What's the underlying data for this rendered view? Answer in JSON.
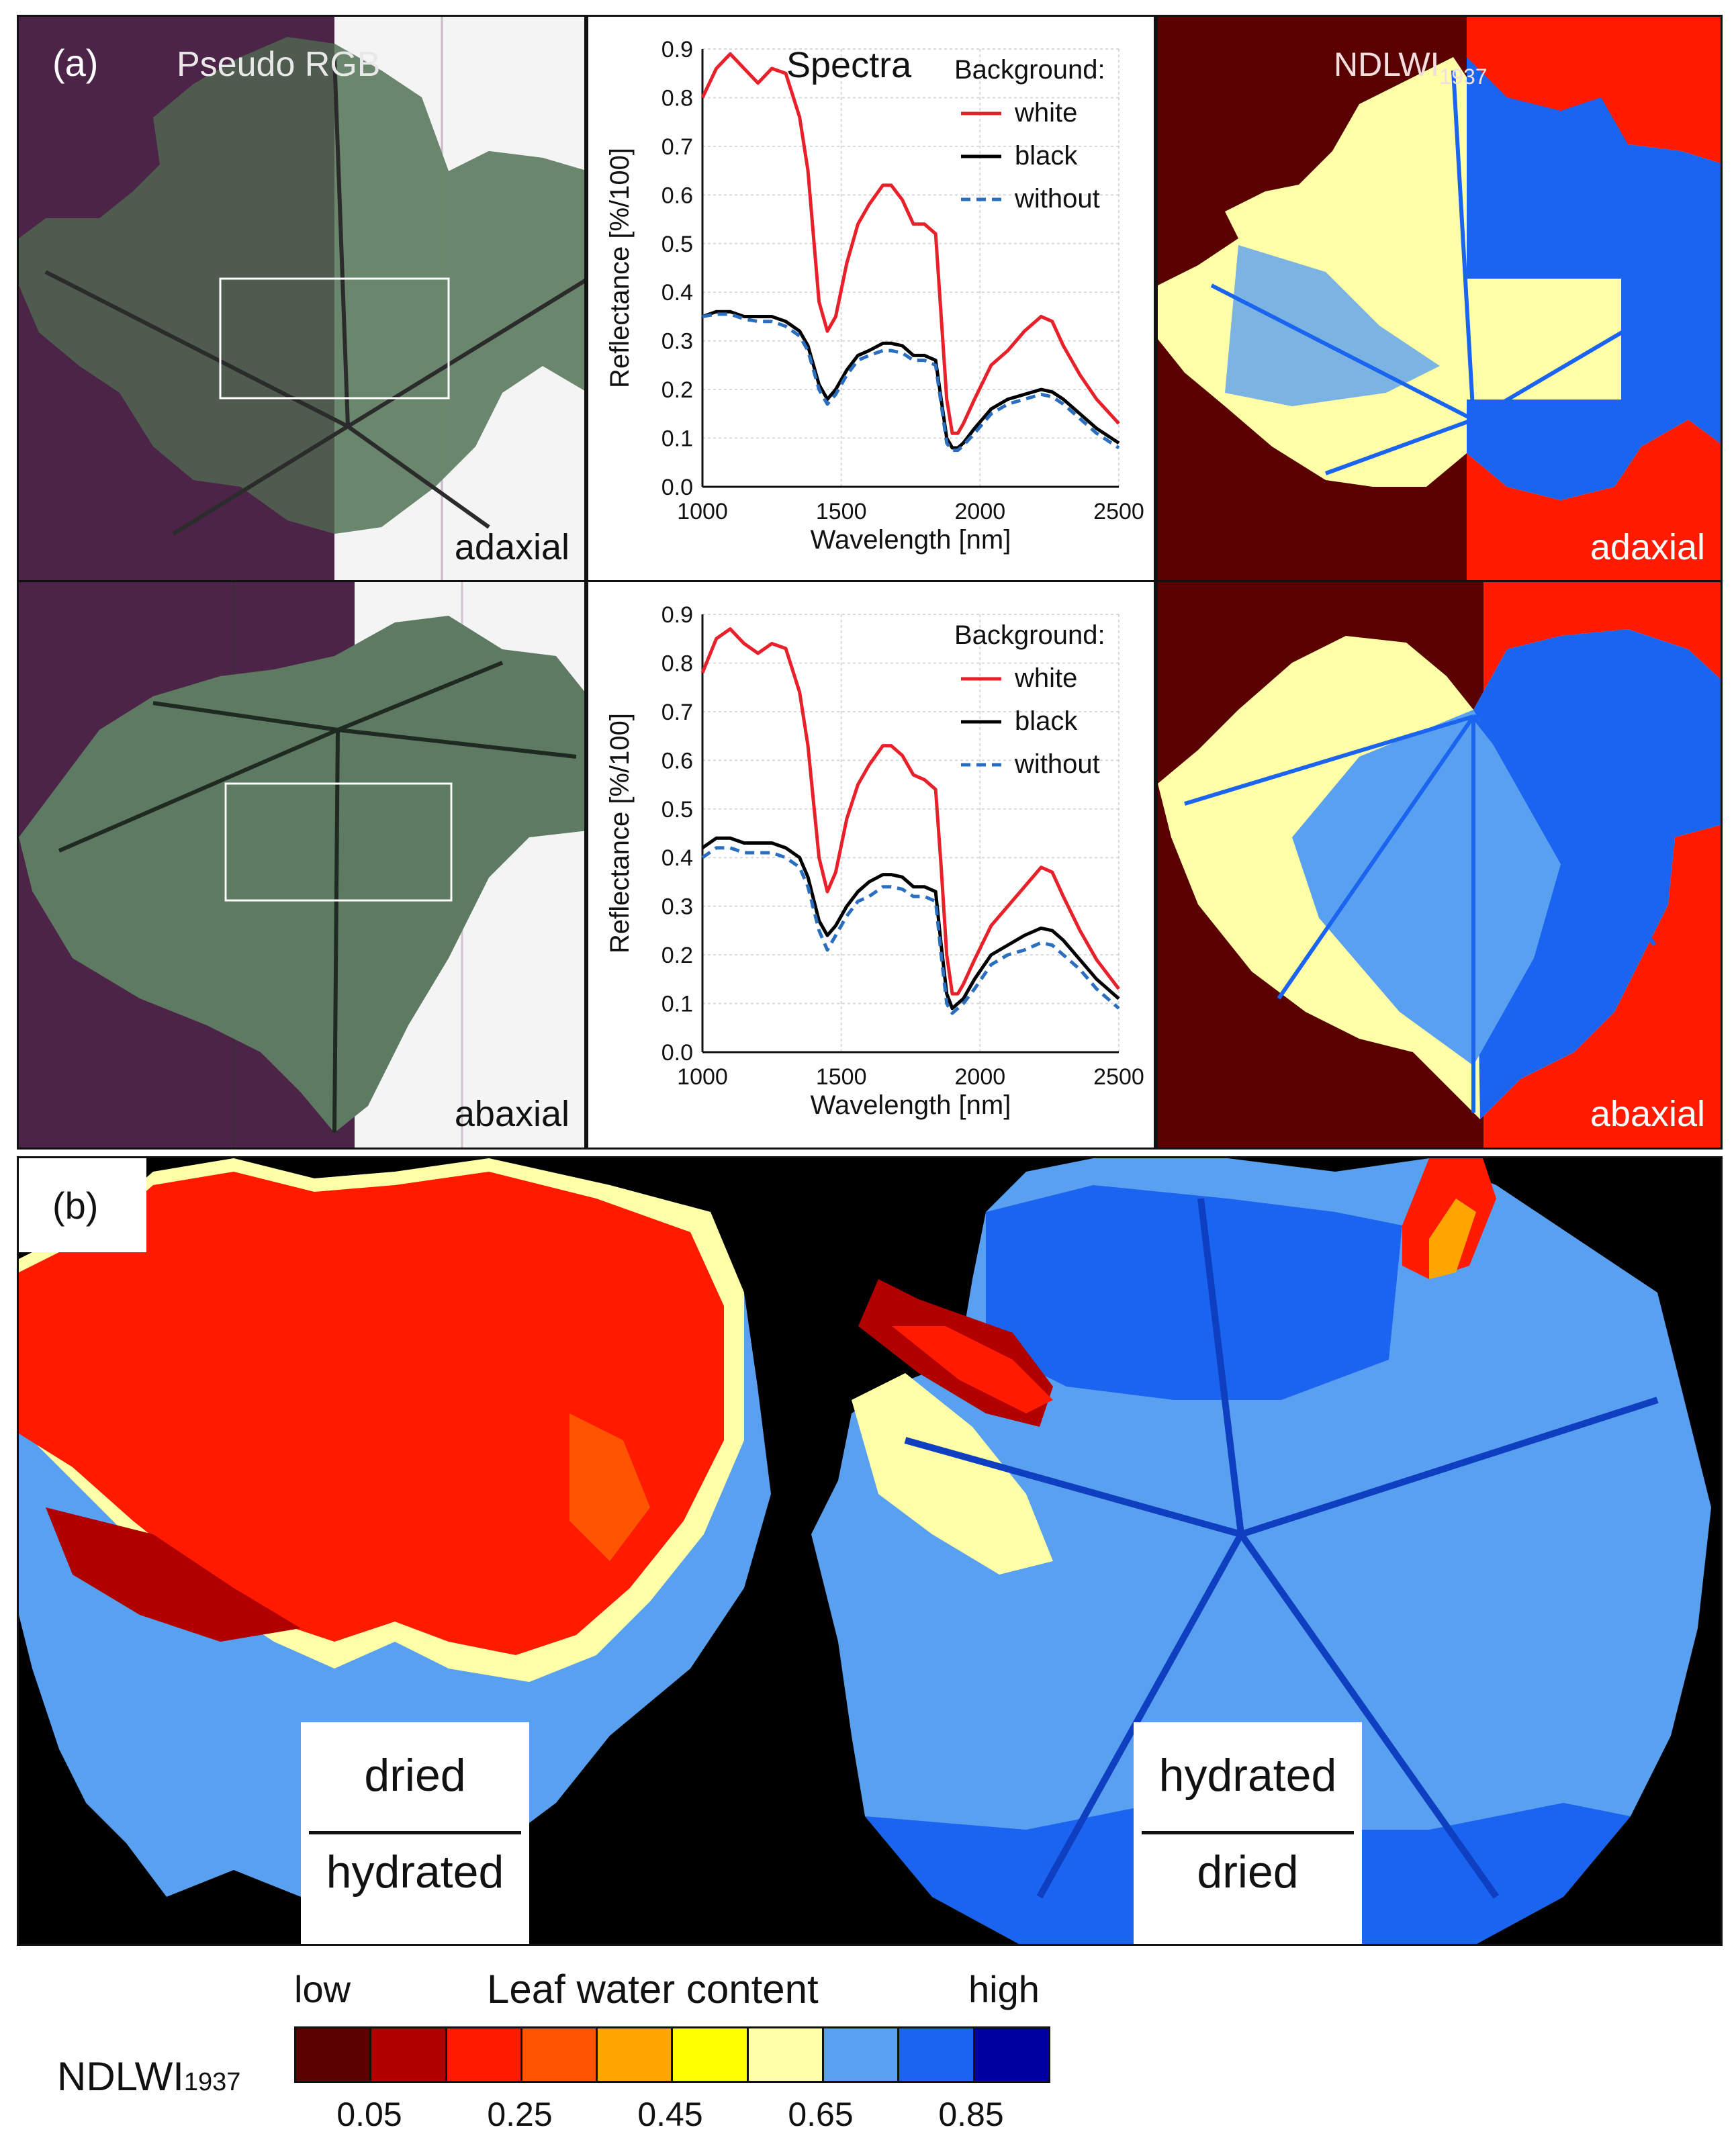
{
  "panel_a": {
    "tag": "(a)",
    "rgb_title": "Pseudo RGB",
    "ndlwi_title_base": "NDLWI",
    "ndlwi_title_sub": "1937",
    "rows": [
      {
        "side": "adaxial"
      },
      {
        "side": "abaxial"
      }
    ]
  },
  "panel_b": {
    "tag": "(b)",
    "left_top": "dried",
    "left_bottom": "hydrated",
    "right_top": "hydrated",
    "right_bottom": "dried"
  },
  "colorbar": {
    "label_base": "NDLWI",
    "label_sub": "1937",
    "low": "low",
    "title": "Leaf water content",
    "high": "high",
    "ticks": [
      "0.05",
      "0.25",
      "0.45",
      "0.65",
      "0.85"
    ],
    "colors": [
      "#5a0000",
      "#b00000",
      "#ff1a00",
      "#ff5500",
      "#ffa500",
      "#ffff00",
      "#ffffa8",
      "#5aa0f0",
      "#1a64f0",
      "#0000a0"
    ]
  },
  "colors": {
    "white_bg": "#e8202a",
    "black_bg": "#000000",
    "without_bg": "#2a6fbf",
    "purple": "#4c2448",
    "darkred": "#5a0000",
    "red": "#ff1a00"
  },
  "chart_data": [
    {
      "type": "line",
      "title": "Spectra",
      "xlabel": "Wavelength  [nm]",
      "ylabel": "Reflectance  [%/100]",
      "xlim": [
        1000,
        2500
      ],
      "ylim": [
        0.0,
        0.9
      ],
      "x_ticks": [
        "1000",
        "1500",
        "2000",
        "2500"
      ],
      "y_ticks": [
        "0.0",
        "0.1",
        "0.2",
        "0.3",
        "0.4",
        "0.5",
        "0.6",
        "0.7",
        "0.8",
        "0.9"
      ],
      "legend_title": "Background:",
      "legend_position": "top-right",
      "grid": true,
      "x": [
        1000,
        1050,
        1100,
        1150,
        1200,
        1250,
        1300,
        1350,
        1380,
        1420,
        1450,
        1480,
        1520,
        1560,
        1600,
        1650,
        1680,
        1720,
        1760,
        1800,
        1840,
        1860,
        1880,
        1900,
        1920,
        1940,
        1980,
        2040,
        2100,
        2160,
        2220,
        2260,
        2300,
        2360,
        2420,
        2500
      ],
      "series": [
        {
          "name": "white",
          "color": "#e8202a",
          "dash": "solid",
          "values": [
            0.8,
            0.86,
            0.89,
            0.86,
            0.83,
            0.86,
            0.85,
            0.76,
            0.65,
            0.38,
            0.32,
            0.35,
            0.46,
            0.54,
            0.58,
            0.62,
            0.62,
            0.59,
            0.54,
            0.54,
            0.52,
            0.35,
            0.18,
            0.11,
            0.11,
            0.13,
            0.18,
            0.25,
            0.28,
            0.32,
            0.35,
            0.34,
            0.29,
            0.23,
            0.18,
            0.13
          ]
        },
        {
          "name": "black",
          "color": "#000000",
          "dash": "solid",
          "values": [
            0.35,
            0.36,
            0.36,
            0.35,
            0.35,
            0.35,
            0.34,
            0.32,
            0.29,
            0.21,
            0.18,
            0.2,
            0.24,
            0.27,
            0.28,
            0.295,
            0.295,
            0.29,
            0.27,
            0.27,
            0.26,
            0.18,
            0.1,
            0.08,
            0.08,
            0.09,
            0.12,
            0.16,
            0.18,
            0.19,
            0.2,
            0.195,
            0.18,
            0.15,
            0.12,
            0.09
          ]
        },
        {
          "name": "without",
          "color": "#2a6fbf",
          "dash": "dashed",
          "values": [
            0.35,
            0.355,
            0.355,
            0.345,
            0.34,
            0.34,
            0.33,
            0.31,
            0.28,
            0.2,
            0.17,
            0.19,
            0.23,
            0.26,
            0.27,
            0.28,
            0.28,
            0.275,
            0.26,
            0.26,
            0.25,
            0.17,
            0.09,
            0.075,
            0.075,
            0.085,
            0.11,
            0.15,
            0.17,
            0.18,
            0.19,
            0.185,
            0.17,
            0.14,
            0.11,
            0.08
          ]
        }
      ]
    },
    {
      "type": "line",
      "title": "",
      "xlabel": "Wavelength  [nm]",
      "ylabel": "Reflectance  [%/100]",
      "xlim": [
        1000,
        2500
      ],
      "ylim": [
        0.0,
        0.9
      ],
      "x_ticks": [
        "1000",
        "1500",
        "2000",
        "2500"
      ],
      "y_ticks": [
        "0.0",
        "0.1",
        "0.2",
        "0.3",
        "0.4",
        "0.5",
        "0.6",
        "0.7",
        "0.8",
        "0.9"
      ],
      "legend_title": "Background:",
      "legend_position": "top-right",
      "grid": true,
      "x": [
        1000,
        1050,
        1100,
        1150,
        1200,
        1250,
        1300,
        1350,
        1380,
        1420,
        1450,
        1480,
        1520,
        1560,
        1600,
        1650,
        1680,
        1720,
        1760,
        1800,
        1840,
        1860,
        1880,
        1900,
        1920,
        1940,
        1980,
        2040,
        2100,
        2160,
        2220,
        2260,
        2300,
        2360,
        2420,
        2500
      ],
      "series": [
        {
          "name": "white",
          "color": "#e8202a",
          "dash": "solid",
          "values": [
            0.78,
            0.85,
            0.87,
            0.84,
            0.82,
            0.84,
            0.83,
            0.74,
            0.63,
            0.4,
            0.33,
            0.37,
            0.48,
            0.55,
            0.59,
            0.63,
            0.63,
            0.61,
            0.57,
            0.56,
            0.54,
            0.38,
            0.2,
            0.12,
            0.12,
            0.14,
            0.19,
            0.26,
            0.3,
            0.34,
            0.38,
            0.37,
            0.32,
            0.25,
            0.19,
            0.13
          ]
        },
        {
          "name": "black",
          "color": "#000000",
          "dash": "solid",
          "values": [
            0.42,
            0.44,
            0.44,
            0.43,
            0.43,
            0.43,
            0.42,
            0.4,
            0.36,
            0.27,
            0.24,
            0.26,
            0.3,
            0.33,
            0.35,
            0.365,
            0.365,
            0.36,
            0.34,
            0.34,
            0.33,
            0.22,
            0.12,
            0.09,
            0.1,
            0.11,
            0.15,
            0.2,
            0.22,
            0.24,
            0.255,
            0.25,
            0.23,
            0.19,
            0.15,
            0.11
          ]
        },
        {
          "name": "without",
          "color": "#2a6fbf",
          "dash": "dashed",
          "values": [
            0.4,
            0.42,
            0.42,
            0.41,
            0.41,
            0.41,
            0.4,
            0.38,
            0.34,
            0.25,
            0.21,
            0.24,
            0.28,
            0.31,
            0.32,
            0.34,
            0.34,
            0.335,
            0.32,
            0.32,
            0.31,
            0.2,
            0.1,
            0.08,
            0.09,
            0.1,
            0.13,
            0.18,
            0.2,
            0.21,
            0.225,
            0.22,
            0.2,
            0.17,
            0.13,
            0.09
          ]
        }
      ]
    }
  ]
}
